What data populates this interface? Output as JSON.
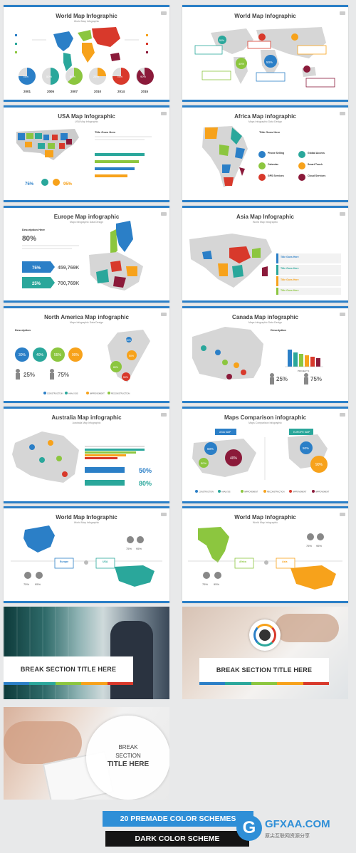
{
  "slides": [
    {
      "title": "World Map Infographic",
      "subtitle": "World Map Infographic",
      "percents": [
        "75%",
        "50%",
        "60%",
        "25%",
        "75%",
        "90%"
      ],
      "years": [
        "2001",
        "2005",
        "2007",
        "2010",
        "2014",
        "2015"
      ]
    },
    {
      "title": "World Map Infographic",
      "subtitle": "",
      "percents": [
        "50%",
        "40%",
        "50%"
      ]
    },
    {
      "title": "USA Map Infographic",
      "subtitle": "USA Map Infographic",
      "percents": [
        "75%",
        "95%"
      ],
      "side_title": "Title Goes Here"
    },
    {
      "title": "Africa Map infographic",
      "subtitle": "Maps Infographic Data Design",
      "side_title": "Title Goes Here",
      "features": [
        "Phone Selling",
        "Global Access",
        "Calendar",
        "Smart Touch",
        "GPS Services",
        "Cloud Services"
      ]
    },
    {
      "title": "Europe Map infographic",
      "subtitle": "Maps Infographic Data Design",
      "heading": "Description Here",
      "big_percent": "80%",
      "rows": [
        {
          "pct": "75%",
          "value": "459,769K"
        },
        {
          "pct": "25%",
          "value": "700,769K"
        }
      ]
    },
    {
      "title": "Asia Map Infographic",
      "subtitle": "World Map Infographic",
      "items": [
        "Title Goes Here",
        "Title Goes Here",
        "Title Goes Here",
        "Title Goes Here"
      ]
    },
    {
      "title": "North America Map infographic",
      "subtitle": "Maps Infographic Data Design",
      "heading": "Description",
      "circles": [
        "30%",
        "40%",
        "55%",
        "90%"
      ],
      "people": [
        "25%",
        "75%"
      ],
      "legend": [
        "CONSTRUCTION",
        "ANALYSIS",
        "IMPROVEMENT",
        "RECONSTRUCTION"
      ],
      "bubbles": [
        "80%",
        "50%",
        "30%",
        "50%"
      ]
    },
    {
      "title": "Canada Map infographic",
      "subtitle": "Maps Infographic Data Design",
      "heading": "Description",
      "project": "PROJECT 1",
      "people": [
        "25%",
        "75%"
      ]
    },
    {
      "title": "Australia Map infographic",
      "subtitle": "Australia Map Infographic",
      "percents": [
        "50%",
        "80%"
      ]
    },
    {
      "title": "Maps Comparison infographic",
      "subtitle": "Maps Comparison Infographic",
      "tags": [
        "ASIA MAP",
        "EUROPE MAP"
      ],
      "left_pcts": [
        "60%",
        "40%",
        "50%"
      ],
      "right_pcts": [
        "50%",
        "90%"
      ],
      "legend": [
        "CONSTRUCTION",
        "ANALYSIS",
        "IMPROVEMENT",
        "RECONSTRUCTION",
        "IMPROVEMENT",
        "IMPROVEMENT"
      ]
    },
    {
      "title": "World Map Infographic",
      "subtitle": "World Map Infographic",
      "labels": [
        "Europe",
        "USA"
      ],
      "percents": [
        "75%",
        "95%",
        "75%",
        "95%"
      ]
    },
    {
      "title": "World Map Infographic",
      "subtitle": "World Map Infographic",
      "labels": [
        "Africa",
        "Asia"
      ],
      "percents": [
        "75%",
        "95%",
        "75%",
        "95%"
      ]
    }
  ],
  "breaks": [
    {
      "title": "BREAK SECTION TITLE HERE"
    },
    {
      "title": "BREAK SECTION TITLE HERE"
    },
    {
      "line1": "BREAK",
      "line2": "SECTION",
      "line3": "TITLE HERE"
    }
  ],
  "footer": {
    "color_schemes": "20 PREMADE COLOR SCHEMES",
    "dark_scheme": "DARK COLOR SCHEME",
    "watermark": "GFXAA.COM",
    "watermark_sub": "原尖互联网资源分享"
  },
  "colors": {
    "blue": "#2b7fc7",
    "teal": "#2aa79b",
    "green": "#8cc63f",
    "orange": "#f7a21b",
    "red": "#d8392b",
    "maroon": "#8b1a3a"
  }
}
